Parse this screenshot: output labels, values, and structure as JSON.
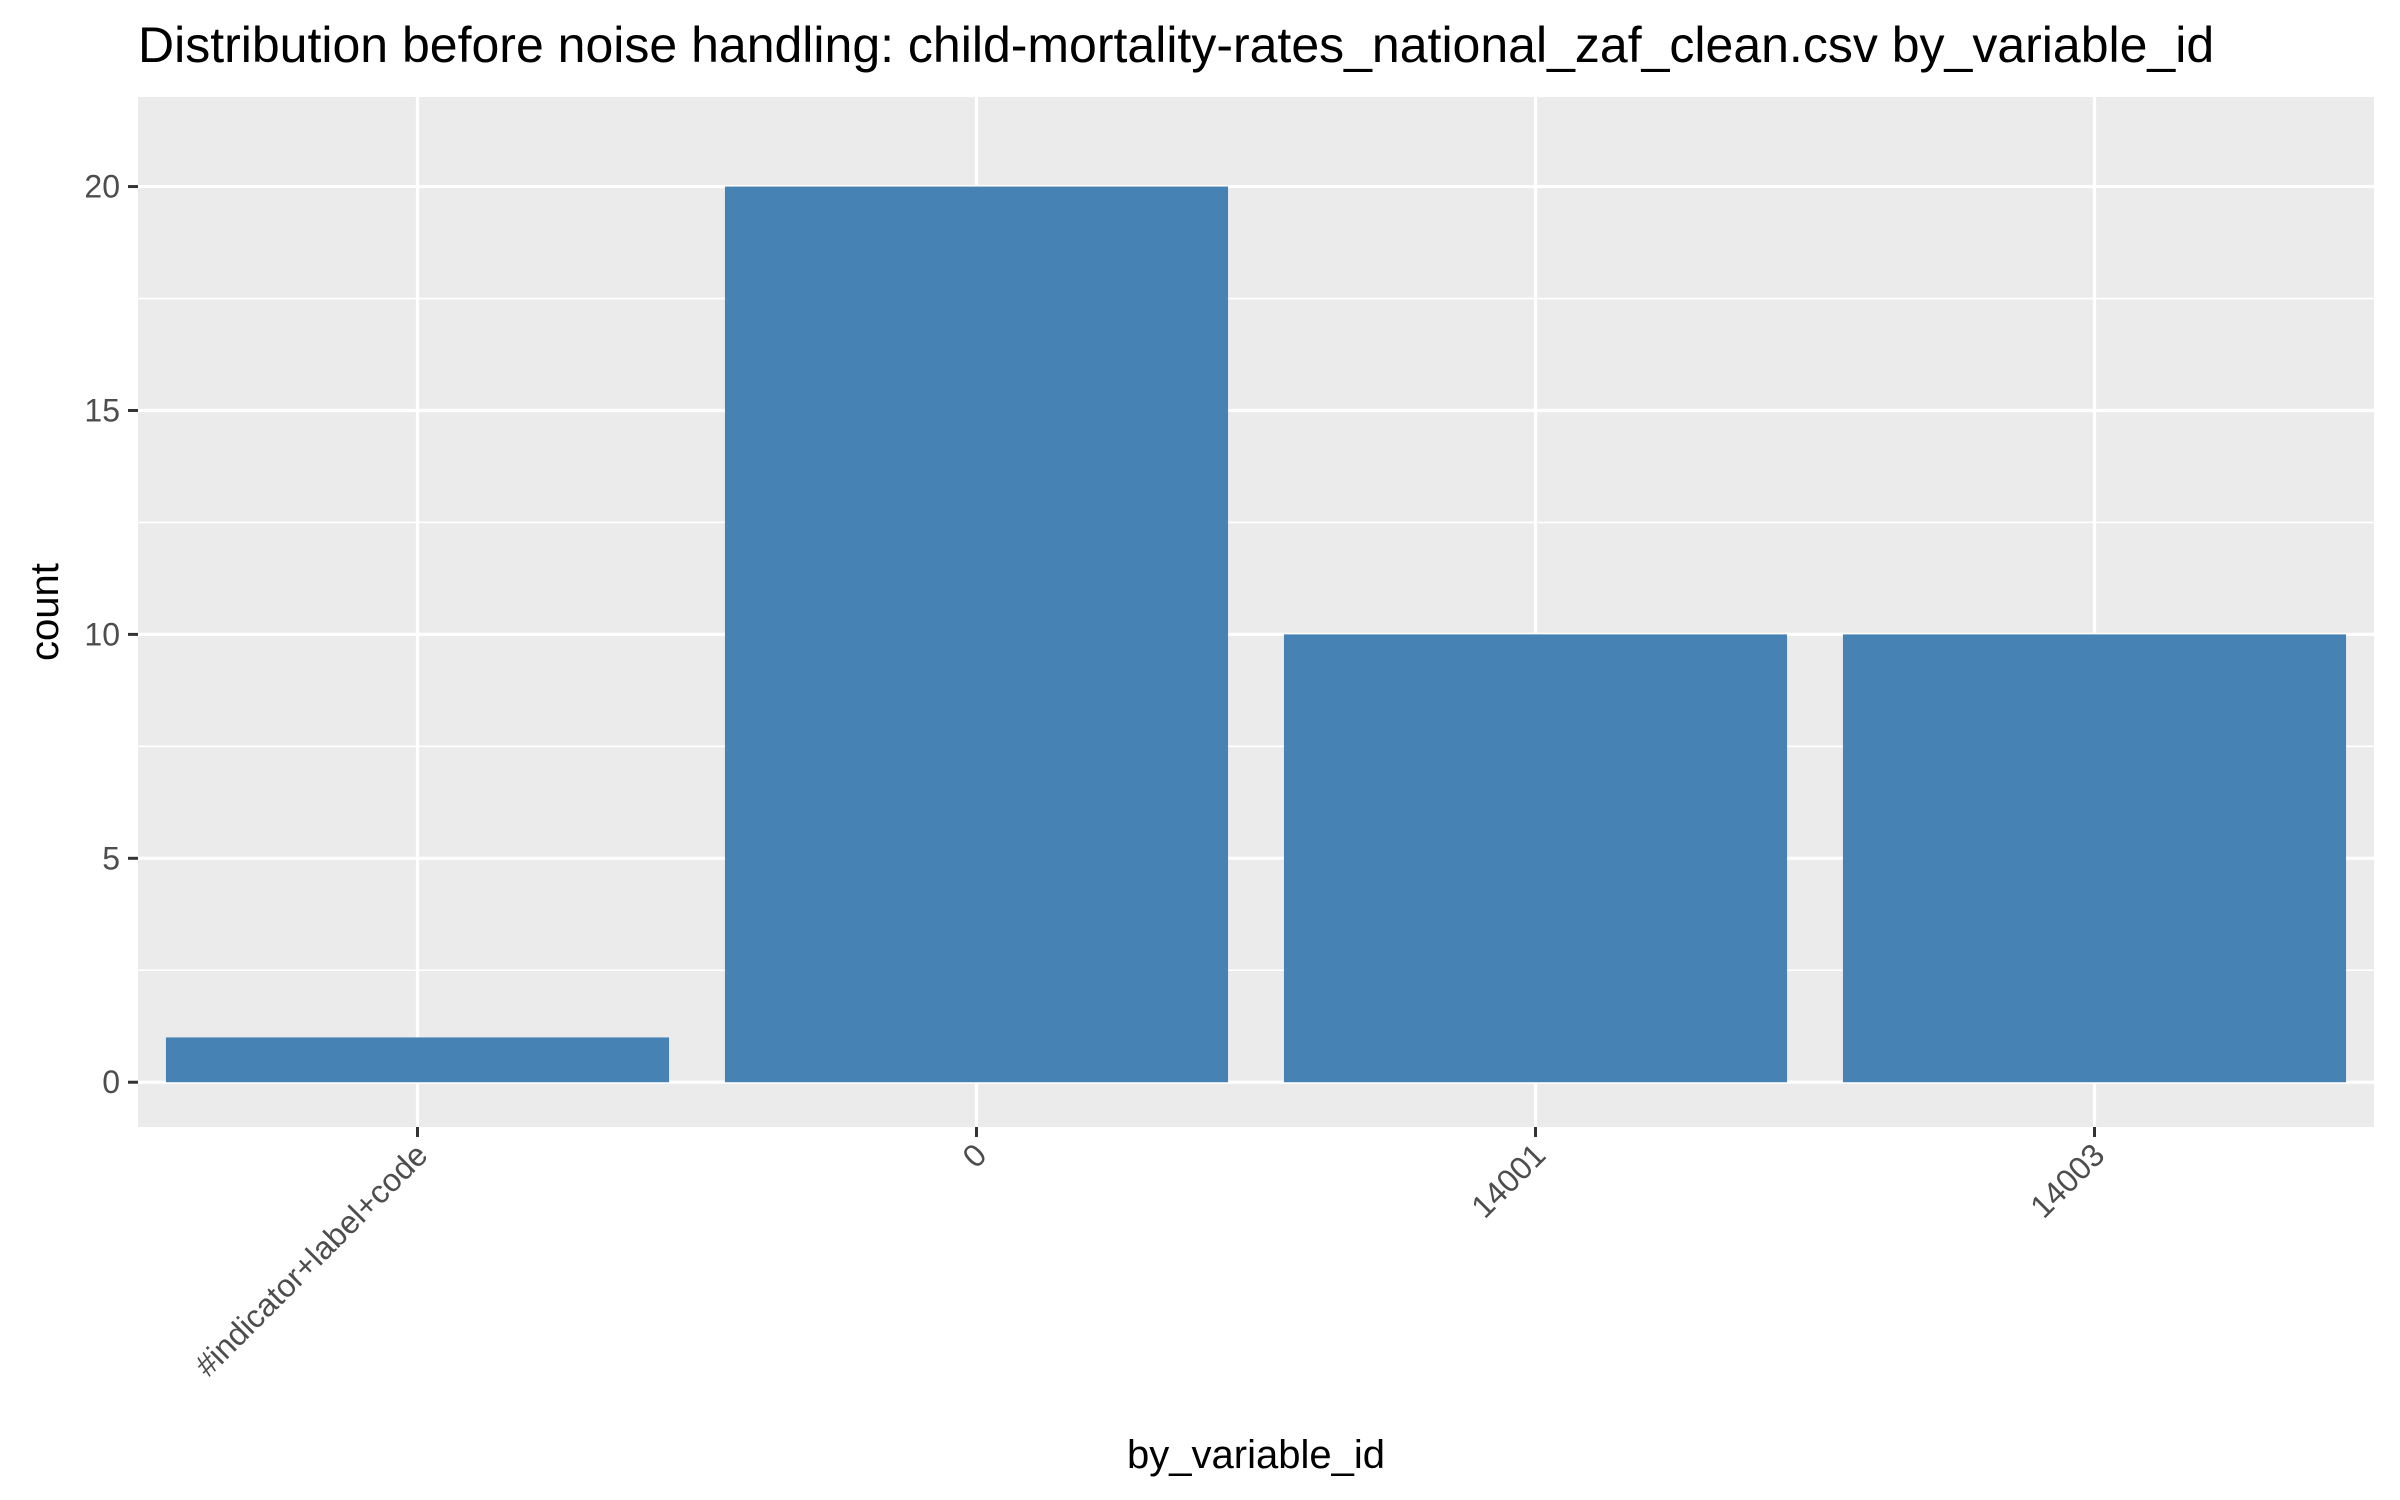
{
  "chart_data": {
    "type": "bar",
    "title": "Distribution before noise handling: child-mortality-rates_national_zaf_clean.csv by_variable_id",
    "xlabel": "by_variable_id",
    "ylabel": "count",
    "categories": [
      "#indicator+label+code",
      "0",
      "14001",
      "14003"
    ],
    "values": [
      1,
      20,
      10,
      10
    ],
    "ylim": [
      -1,
      22
    ],
    "yticks": [
      0,
      5,
      10,
      15,
      20
    ],
    "grid": true,
    "legend": "none",
    "colors": {
      "bar": "#4682B4",
      "panel": "#EBEBEB",
      "grid": "#FFFFFF",
      "tick": "#333333"
    }
  }
}
